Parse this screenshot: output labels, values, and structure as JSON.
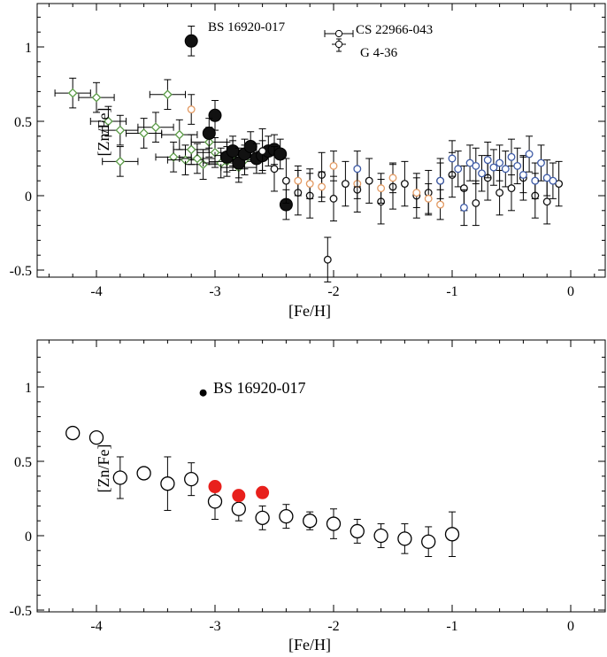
{
  "chart_data": [
    {
      "type": "scatter",
      "xlabel": "[Fe/H]",
      "ylabel": "[Zn/Fe]",
      "xlim": [
        -4.5,
        0.3
      ],
      "ylim": [
        -0.5,
        1.3
      ],
      "xticks": [
        -4,
        -3,
        -2,
        -1,
        0
      ],
      "xtick_labels": [
        "-4",
        "-3",
        "-2",
        "-1",
        "0"
      ],
      "yticks": [
        -0.5,
        0,
        0.5,
        1
      ],
      "ytick_labels": [
        "-0.5",
        "0",
        "0.5",
        "1"
      ],
      "annotations": [
        "BS 16920-017",
        "CS 22966-043",
        "G 4-36"
      ],
      "colors": {
        "green": "#5a9a46",
        "orange": "#e39a62",
        "blue": "#3d5aa6",
        "black": "#111111",
        "red": "#e8201c"
      },
      "series": [
        {
          "name": "green open diamonds",
          "marker": "diamond",
          "color": "green",
          "points": [
            [
              -4.2,
              0.69
            ],
            [
              -4.0,
              0.66
            ],
            [
              -3.9,
              0.5
            ],
            [
              -3.8,
              0.44
            ],
            [
              -3.8,
              0.23
            ],
            [
              -3.6,
              0.42
            ],
            [
              -3.5,
              0.46
            ],
            [
              -3.4,
              0.68
            ],
            [
              -3.3,
              0.41
            ],
            [
              -3.35,
              0.26
            ],
            [
              -3.25,
              0.24
            ],
            [
              -3.2,
              0.31
            ],
            [
              -3.15,
              0.25
            ],
            [
              -3.1,
              0.21
            ],
            [
              -3.05,
              0.36
            ],
            [
              -3.0,
              0.29
            ],
            [
              -2.95,
              0.22
            ],
            [
              -2.9,
              0.23
            ],
            [
              -2.85,
              0.27
            ],
            [
              -2.8,
              0.19
            ],
            [
              -2.75,
              0.24
            ]
          ],
          "xerr": 0.15,
          "yerr": 0.1
        },
        {
          "name": "large black circles",
          "marker": "filled-circle-large",
          "color": "black",
          "points": [
            [
              -3.2,
              1.04
            ],
            [
              -3.0,
              0.54
            ],
            [
              -3.05,
              0.42
            ],
            [
              -2.9,
              0.26
            ],
            [
              -2.85,
              0.3
            ],
            [
              -2.8,
              0.22
            ],
            [
              -2.75,
              0.28
            ],
            [
              -2.7,
              0.33
            ],
            [
              -2.65,
              0.25
            ],
            [
              -2.6,
              0.27
            ],
            [
              -2.55,
              0.3
            ],
            [
              -2.5,
              0.31
            ],
            [
              -2.45,
              0.28
            ],
            [
              -2.4,
              -0.06
            ]
          ],
          "yerr": 0.1
        },
        {
          "name": "black open circles",
          "marker": "open-circle",
          "color": "black",
          "points": [
            [
              -2.6,
              0.3
            ],
            [
              -2.5,
              0.18
            ],
            [
              -2.4,
              0.1
            ],
            [
              -2.3,
              0.02
            ],
            [
              -2.2,
              0.0
            ],
            [
              -2.1,
              0.14
            ],
            [
              -2.0,
              -0.02
            ],
            [
              -1.9,
              0.08
            ],
            [
              -1.8,
              0.04
            ],
            [
              -1.7,
              0.1
            ],
            [
              -1.6,
              -0.04
            ],
            [
              -1.5,
              0.06
            ],
            [
              -1.4,
              0.08
            ],
            [
              -1.3,
              0.0
            ],
            [
              -1.2,
              0.02
            ],
            [
              -1.1,
              0.1
            ],
            [
              -1.0,
              0.14
            ],
            [
              -0.9,
              0.05
            ],
            [
              -0.8,
              -0.05
            ],
            [
              -0.7,
              0.12
            ],
            [
              -0.6,
              0.02
            ],
            [
              -0.5,
              0.05
            ],
            [
              -0.4,
              0.12
            ],
            [
              -0.3,
              0.0
            ],
            [
              -0.2,
              -0.04
            ],
            [
              -0.1,
              0.08
            ],
            [
              -2.05,
              -0.43
            ]
          ],
          "yerr": 0.15
        },
        {
          "name": "orange circles",
          "marker": "open-circle",
          "color": "orange",
          "points": [
            [
              -3.2,
              0.58
            ],
            [
              -2.3,
              0.1
            ],
            [
              -2.2,
              0.08
            ],
            [
              -2.1,
              0.06
            ],
            [
              -2.0,
              0.2
            ],
            [
              -1.8,
              0.08
            ],
            [
              -1.6,
              0.05
            ],
            [
              -1.5,
              0.12
            ],
            [
              -1.3,
              0.02
            ],
            [
              -1.2,
              -0.02
            ],
            [
              -1.1,
              -0.06
            ]
          ],
          "yerr": 0.1
        },
        {
          "name": "blue circles",
          "marker": "open-circle",
          "color": "blue",
          "points": [
            [
              -1.8,
              0.18
            ],
            [
              -1.1,
              0.1
            ],
            [
              -1.0,
              0.25
            ],
            [
              -0.95,
              0.18
            ],
            [
              -0.9,
              -0.08
            ],
            [
              -0.85,
              0.22
            ],
            [
              -0.8,
              0.2
            ],
            [
              -0.75,
              0.15
            ],
            [
              -0.7,
              0.24
            ],
            [
              -0.65,
              0.19
            ],
            [
              -0.6,
              0.22
            ],
            [
              -0.55,
              0.18
            ],
            [
              -0.5,
              0.26
            ],
            [
              -0.45,
              0.2
            ],
            [
              -0.4,
              0.14
            ],
            [
              -0.35,
              0.28
            ],
            [
              -0.3,
              0.1
            ],
            [
              -0.25,
              0.22
            ],
            [
              -0.2,
              0.12
            ],
            [
              -0.15,
              0.1
            ]
          ],
          "yerr": 0.12
        }
      ]
    },
    {
      "type": "scatter",
      "xlabel": "[Fe/H]",
      "ylabel": "[Zn/Fe]",
      "xlim": [
        -4.5,
        0.3
      ],
      "ylim": [
        -0.5,
        1.3
      ],
      "xticks": [
        -4,
        -3,
        -2,
        -1,
        0
      ],
      "xtick_labels": [
        "-4",
        "-3",
        "-2",
        "-1",
        "0"
      ],
      "yticks": [
        -0.5,
        0,
        0.5,
        1
      ],
      "ytick_labels": [
        "-0.5",
        "0",
        "0.5",
        "1"
      ],
      "annotations": [
        "BS 16920-017"
      ],
      "series": [
        {
          "name": "binned mean (open circles)",
          "marker": "open-circle-large",
          "color": "black",
          "points": [
            [
              -4.2,
              0.69,
              0
            ],
            [
              -4.0,
              0.66,
              0
            ],
            [
              -3.8,
              0.39,
              0.14
            ],
            [
              -3.6,
              0.42,
              0
            ],
            [
              -3.4,
              0.35,
              0.18
            ],
            [
              -3.2,
              0.38,
              0.11
            ],
            [
              -3.0,
              0.23,
              0.12
            ],
            [
              -2.8,
              0.18,
              0.08
            ],
            [
              -2.6,
              0.12,
              0.08
            ],
            [
              -2.4,
              0.13,
              0.08
            ],
            [
              -2.2,
              0.1,
              0.06
            ],
            [
              -2.0,
              0.08,
              0.1
            ],
            [
              -1.8,
              0.03,
              0.08
            ],
            [
              -1.6,
              0.0,
              0.08
            ],
            [
              -1.4,
              -0.02,
              0.1
            ],
            [
              -1.2,
              -0.04,
              0.1
            ],
            [
              -1.0,
              0.01,
              0.15
            ]
          ]
        },
        {
          "name": "red filled circles",
          "marker": "filled-circle",
          "color": "red",
          "points": [
            [
              -3.0,
              0.33,
              0.03
            ],
            [
              -2.8,
              0.27,
              0.02
            ],
            [
              -2.6,
              0.29,
              0.02
            ]
          ]
        },
        {
          "name": "BS 16920-017",
          "marker": "small-filled-circle",
          "color": "black",
          "points": [
            [
              -3.1,
              0.96,
              0
            ]
          ]
        }
      ]
    }
  ]
}
